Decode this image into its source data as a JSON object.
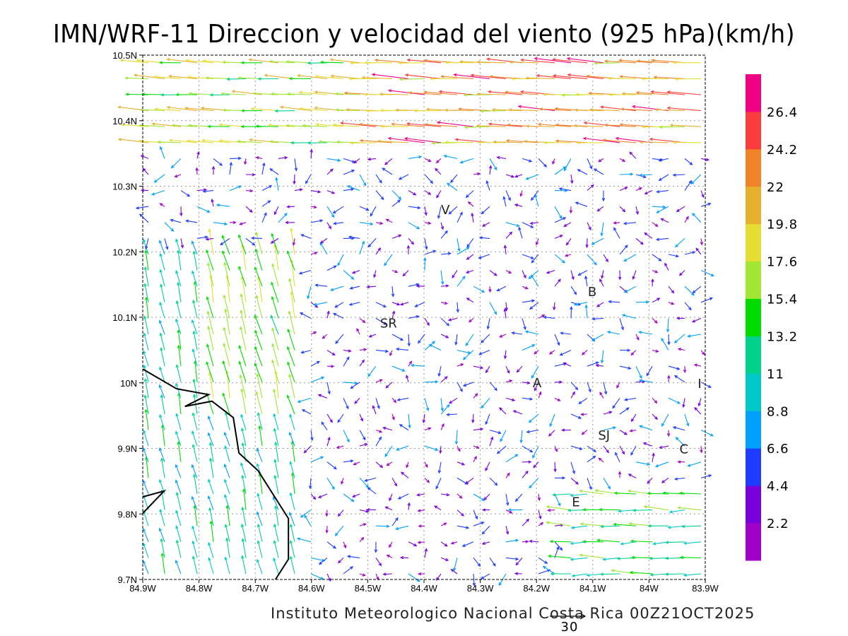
{
  "title": "IMN/WRF-11 Direccion y velocidad del viento (925 hPa)(km/h)",
  "footer": "Instituto Meteorologico Nacional Costa Rica  00Z21OCT2025",
  "reference_vector": {
    "label": "30",
    "value": 30
  },
  "chart_data": {
    "type": "vector-field",
    "units": "km/h",
    "xlim": [
      -84.9,
      -83.9
    ],
    "ylim": [
      9.7,
      10.5
    ],
    "x_ticks": [
      "84.9W",
      "84.8W",
      "84.7W",
      "84.6W",
      "84.5W",
      "84.4W",
      "84.3W",
      "84.2W",
      "84.1W",
      "84W",
      "83.9W"
    ],
    "y_ticks": [
      "9.7N",
      "9.8N",
      "9.9N",
      "10N",
      "10.1N",
      "10.2N",
      "10.3N",
      "10.4N",
      "10.5N"
    ],
    "grid": true,
    "colorbar": {
      "labels": [
        "2.2",
        "4.4",
        "6.6",
        "8.8",
        "11",
        "13.2",
        "15.4",
        "17.6",
        "19.8",
        "22",
        "24.2",
        "26.4"
      ],
      "colors": [
        "#a000c8",
        "#7800dc",
        "#1e3cff",
        "#00a0ff",
        "#00c8c8",
        "#00d28c",
        "#00dc00",
        "#a0e632",
        "#e6dc32",
        "#e6af2d",
        "#f08228",
        "#fa3c3c",
        "#f00082"
      ]
    },
    "cities": [
      {
        "label": "V",
        "lon": -84.362,
        "lat": 10.265
      },
      {
        "label": "SR",
        "lon": -84.463,
        "lat": 10.092
      },
      {
        "label": "B",
        "lon": -84.101,
        "lat": 10.14
      },
      {
        "label": "A",
        "lon": -84.199,
        "lat": 10.001
      },
      {
        "label": "SJ",
        "lon": -84.08,
        "lat": 9.921
      },
      {
        "label": "C",
        "lon": -83.938,
        "lat": 9.9
      },
      {
        "label": "E",
        "lon": -84.13,
        "lat": 9.819
      },
      {
        "label": "I",
        "lon": -83.91,
        "lat": 10.0
      }
    ],
    "coastline": [
      [
        [
          -84.9,
          10.021
        ],
        [
          -84.84,
          9.991
        ],
        [
          -84.783,
          9.982
        ],
        [
          -84.825,
          9.964
        ],
        [
          -84.777,
          9.972
        ],
        [
          -84.739,
          9.947
        ],
        [
          -84.729,
          9.893
        ],
        [
          -84.695,
          9.866
        ],
        [
          -84.641,
          9.793
        ],
        [
          -84.641,
          9.731
        ],
        [
          -84.664,
          9.7
        ]
      ],
      [
        [
          -84.9,
          9.826
        ],
        [
          -84.862,
          9.835
        ],
        [
          -84.9,
          9.801
        ]
      ]
    ]
  }
}
